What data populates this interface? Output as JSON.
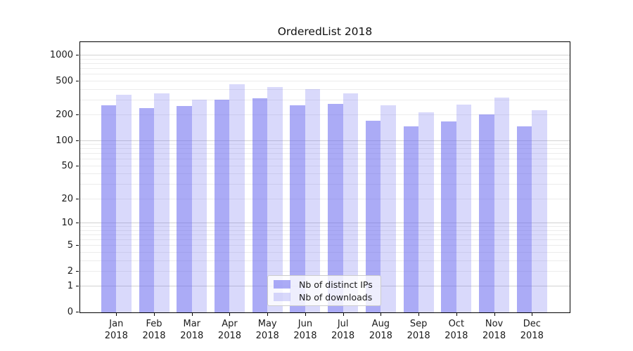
{
  "chart_data": {
    "type": "bar",
    "title": "OrderedList 2018",
    "categories": [
      "Jan",
      "Feb",
      "Mar",
      "Apr",
      "May",
      "Jun",
      "Jul",
      "Aug",
      "Sep",
      "Oct",
      "Nov",
      "Dec"
    ],
    "year_label": "2018",
    "series": [
      {
        "name": "Nb of distinct IPs",
        "color": "rgba(102,102,238,0.55)",
        "values": [
          256,
          241,
          251,
          302,
          312,
          258,
          267,
          171,
          146,
          168,
          201,
          146
        ]
      },
      {
        "name": "Nb of downloads",
        "color": "rgba(102,102,238,0.25)",
        "values": [
          341,
          354,
          300,
          455,
          421,
          400,
          356,
          258,
          213,
          263,
          318,
          227
        ]
      }
    ],
    "y_ticks": [
      0,
      1,
      2,
      5,
      10,
      20,
      50,
      100,
      200,
      500,
      1000
    ],
    "y_scale": "log1p",
    "ylim": [
      0,
      1400
    ],
    "xlabel": "",
    "ylabel": "",
    "grid": "major+minor horizontal",
    "legend_position": "lower-center"
  },
  "colors": {
    "bar_distinct_ips": "rgba(102,102,238,0.55)",
    "bar_downloads": "rgba(102,102,238,0.25)",
    "grid_major": "#d2d2d2",
    "grid_minor": "#ececec",
    "frame": "#000000",
    "text": "#1a1a1a",
    "legend_border": "#cccccc"
  }
}
